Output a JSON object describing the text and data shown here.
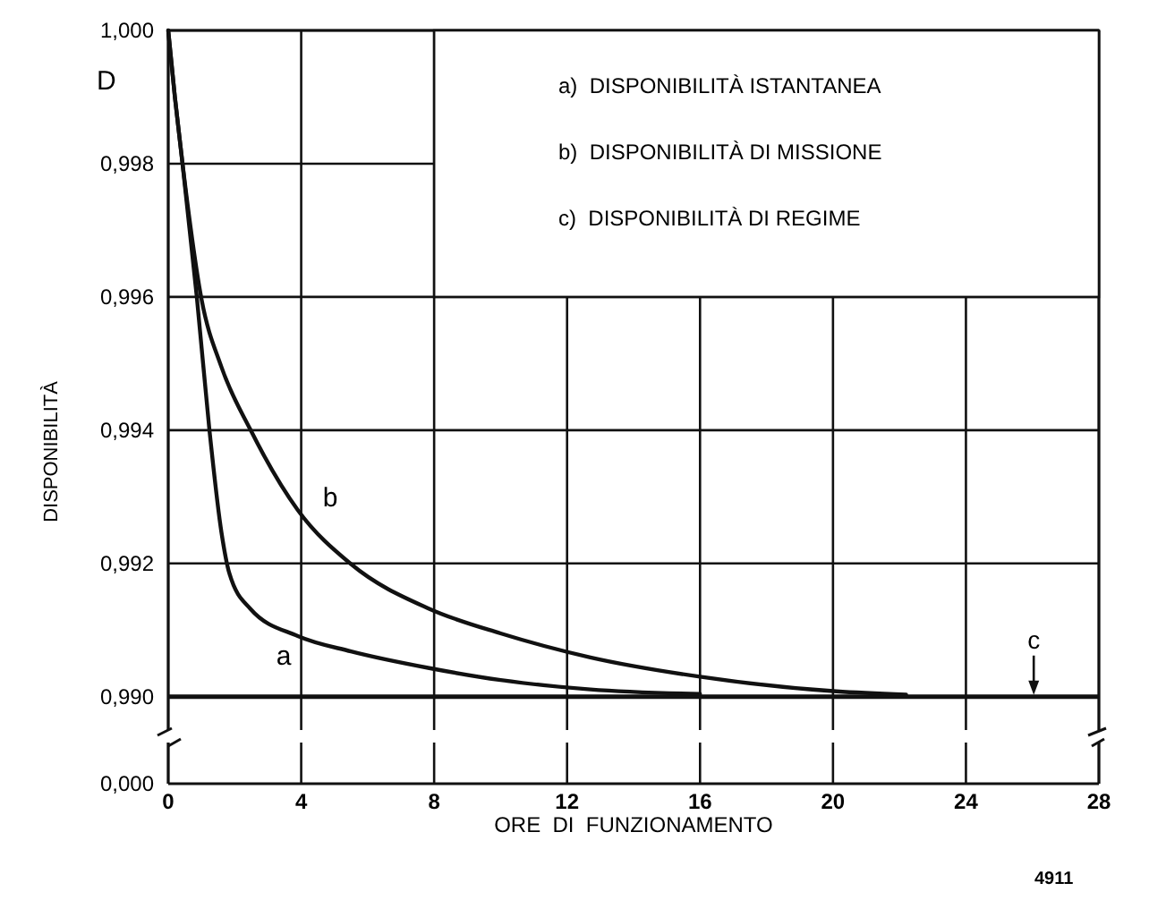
{
  "chart_data": {
    "type": "line",
    "xlabel": "ORE  DI  FUNZIONAMENTO",
    "ylabel": "DISPONIBILITÀ",
    "annotations": [
      "D",
      "a)  DISPONIBILITÀ ISTANTANEA",
      "b)  DISPONIBILITÀ DI MISSIONE",
      "c)  DISPONIBILITÀ DI REGIME",
      "0,000",
      "4911"
    ],
    "series": [
      {
        "name": "a",
        "color": "#111111",
        "x": [
          0,
          0.2,
          0.43,
          0.86,
          1.24,
          1.6,
          1.84,
          2.47,
          3.9,
          5.5,
          7.85,
          10,
          12.7,
          16
        ],
        "values": [
          1.0,
          0.999,
          0.998,
          0.996,
          0.994,
          0.99247,
          0.99185,
          0.99132,
          0.99091,
          0.99068,
          0.99043,
          0.99025,
          0.99011,
          0.99004
        ]
      },
      {
        "name": "b",
        "color": "#111111",
        "x": [
          0,
          0.2,
          0.43,
          1.0,
          1.6,
          2.47,
          3.9,
          5.5,
          7.85,
          10,
          12.7,
          16,
          20.1,
          22.2
        ],
        "values": [
          1.0,
          0.999,
          0.998,
          0.99597,
          0.99495,
          0.99401,
          0.9928,
          0.99199,
          0.99132,
          0.99095,
          0.99059,
          0.9903,
          0.99008,
          0.99003
        ]
      }
    ],
    "xlim": [
      0,
      28
    ],
    "xticks": [
      0,
      4,
      8,
      12,
      16,
      20,
      24,
      28
    ],
    "ylim": [
      0.9895,
      1.0
    ],
    "yticks": [
      {
        "value": 0.99,
        "label": "0,990"
      },
      {
        "value": 0.992,
        "label": "0,992"
      },
      {
        "value": 0.994,
        "label": "0,994"
      },
      {
        "value": 0.996,
        "label": "0,996"
      },
      {
        "value": 0.998,
        "label": "0,998"
      },
      {
        "value": 1.0,
        "label": "1,000"
      }
    ],
    "grid": true,
    "ref_lines": [
      {
        "axis": "y",
        "value": 0.99,
        "label": "c"
      }
    ]
  }
}
